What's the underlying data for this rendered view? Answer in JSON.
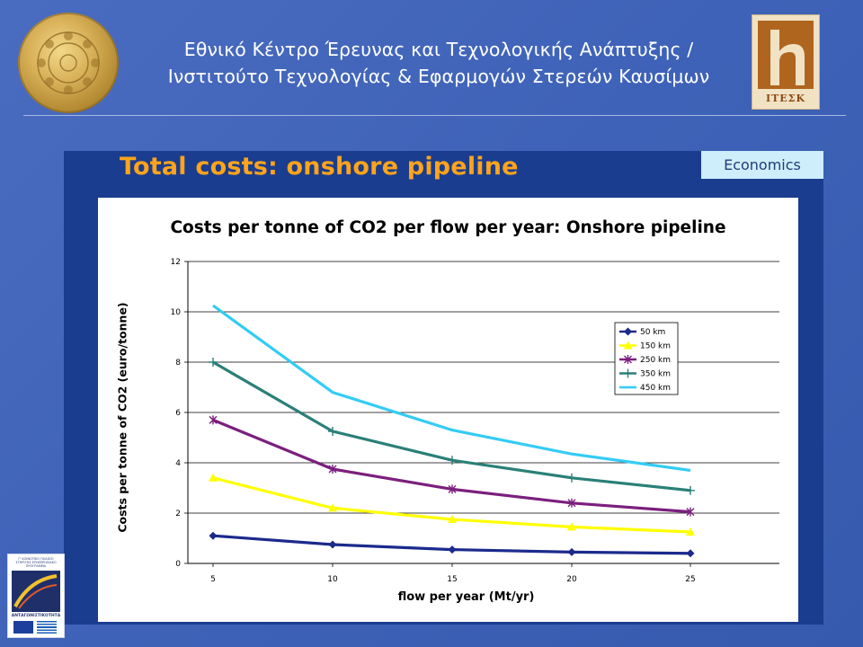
{
  "header": {
    "title_line1": "Εθνικό Κέντρο Έρευνας και Τεχνολογικής Ανάπτυξης /",
    "title_line2": "Ινστιτούτο Τεχνολογίας & Εφαρμογών Στερεών Καυσίμων",
    "left_logo": "golden-seal-icon",
    "right_logo_text": "ΙΤΕΣΚ"
  },
  "slide": {
    "heading": "Total costs: onshore pipeline",
    "tag": "Economics",
    "heading_color": "#ffa41b",
    "panel_color": "#1a3d8f"
  },
  "footer_logo": {
    "top_text": "Γ' ΚΟΙΝΟΤΙΚΟ ΠΛΑΙΣΙΟ ΣΤΗΡΙΞΗΣ ΕΠΙΧΕΙΡΗΣΙΑΚΟ ΠΡΟΓΡΑΜΜΑ",
    "word": "ΑΝΤΑΓΩΝΙΣΤΙΚΟΤΗΤΑ"
  },
  "chart_data": {
    "type": "line",
    "title": "Costs per tonne of CO2 per flow per year: Onshore pipeline",
    "xlabel": "flow per year (Mt/yr)",
    "ylabel": "Costs per tonne of CO2 (euro/tonne)",
    "x": [
      5,
      10,
      15,
      20,
      25
    ],
    "ylim": [
      0,
      12
    ],
    "yticks": [
      0,
      2,
      4,
      6,
      8,
      10,
      12
    ],
    "grid": "horizontal",
    "legend_position": "right",
    "series": [
      {
        "name": "50 km",
        "color": "#1b2a8c",
        "marker": "diamond",
        "values": [
          1.1,
          0.75,
          0.55,
          0.45,
          0.4
        ]
      },
      {
        "name": "150 km",
        "color": "#ffff00",
        "marker": "triangle",
        "values": [
          3.4,
          2.2,
          1.75,
          1.45,
          1.25
        ]
      },
      {
        "name": "250 km",
        "color": "#7b1f7e",
        "marker": "star",
        "values": [
          5.7,
          3.75,
          2.95,
          2.4,
          2.05
        ]
      },
      {
        "name": "350 km",
        "color": "#2a8078",
        "marker": "plus",
        "values": [
          8.0,
          5.25,
          4.1,
          3.4,
          2.9
        ]
      },
      {
        "name": "450 km",
        "color": "#33ccf5",
        "marker": "none",
        "values": [
          10.25,
          6.8,
          5.3,
          4.35,
          3.7
        ]
      }
    ]
  }
}
